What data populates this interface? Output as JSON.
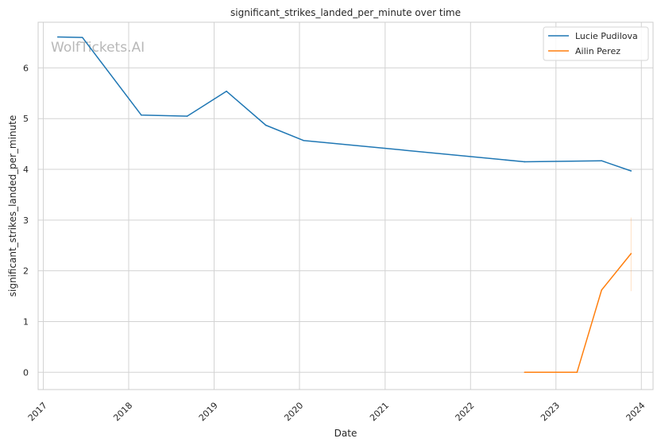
{
  "watermark": "WolfTickets.AI",
  "chart_data": {
    "type": "line",
    "title": "significant_strikes_landed_per_minute over time",
    "xlabel": "Date",
    "ylabel": "significant_strikes_landed_per_minute",
    "xlim": [
      "2016-12-10",
      "2024-02-20"
    ],
    "ylim": [
      -0.34,
      6.9
    ],
    "x_ticks": [
      "2017",
      "2018",
      "2019",
      "2020",
      "2021",
      "2022",
      "2023",
      "2024"
    ],
    "y_ticks": [
      0,
      1,
      2,
      3,
      4,
      5,
      6
    ],
    "grid": true,
    "legend_position": "top-right",
    "series": [
      {
        "name": "Lucie Pudilova",
        "color": "#1f77b4",
        "points": [
          {
            "x": "2017-03-04",
            "y": 6.61
          },
          {
            "x": "2017-06-17",
            "y": 6.6
          },
          {
            "x": "2018-02-24",
            "y": 5.07
          },
          {
            "x": "2018-09-08",
            "y": 5.05
          },
          {
            "x": "2019-02-23",
            "y": 5.54
          },
          {
            "x": "2019-08-10",
            "y": 4.87
          },
          {
            "x": "2020-01-18",
            "y": 4.57
          },
          {
            "x": "2022-08-20",
            "y": 4.15
          },
          {
            "x": "2023-07-15",
            "y": 4.17
          },
          {
            "x": "2023-11-18",
            "y": 3.97
          }
        ]
      },
      {
        "name": "Ailin Perez",
        "color": "#ff7f0e",
        "points": [
          {
            "x": "2022-08-20",
            "y": 0.0
          },
          {
            "x": "2023-04-01",
            "y": 0.0
          },
          {
            "x": "2023-07-15",
            "y": 1.62
          },
          {
            "x": "2023-11-18",
            "y": 2.34
          }
        ],
        "error_band": {
          "x": "2023-11-18",
          "low": 1.6,
          "high": 3.05
        }
      }
    ]
  }
}
